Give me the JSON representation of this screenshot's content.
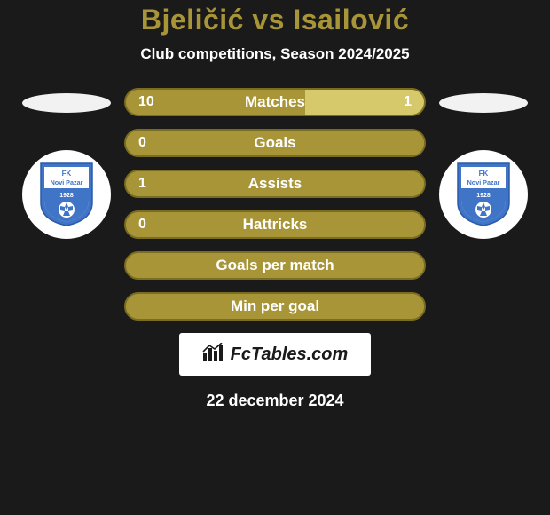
{
  "colors": {
    "background": "#1a1a1a",
    "text": "#ffffff",
    "title": "#a89538",
    "barPrimary": "#a89538",
    "barSecondary": "#d6c96b",
    "barBorder": "#7a6c20",
    "ovalLeft": "#f2f2f2",
    "ovalRight": "#f2f2f2",
    "badgeBg": "#ffffff",
    "shieldBlue": "#3f74c7",
    "shieldWhite": "#ffffff",
    "logoBg": "#ffffff",
    "logoText": "#1a1a1a"
  },
  "header": {
    "title": "Bjeličić vs Isailović",
    "subtitle": "Club competitions, Season 2024/2025"
  },
  "teams": {
    "left": {
      "name": "FK Novi Pazar",
      "founded": "1928"
    },
    "right": {
      "name": "FK Novi Pazar",
      "founded": "1928"
    }
  },
  "bars": [
    {
      "label": "Matches",
      "left": "10",
      "right": "1",
      "leftPct": 60,
      "rightPct": 40,
      "showLeft": true,
      "showRight": true,
      "rightHighlighted": true
    },
    {
      "label": "Goals",
      "left": "0",
      "right": "",
      "leftPct": 100,
      "rightPct": 0,
      "showLeft": true,
      "showRight": false,
      "rightHighlighted": false
    },
    {
      "label": "Assists",
      "left": "1",
      "right": "",
      "leftPct": 100,
      "rightPct": 0,
      "showLeft": true,
      "showRight": false,
      "rightHighlighted": false
    },
    {
      "label": "Hattricks",
      "left": "0",
      "right": "",
      "leftPct": 100,
      "rightPct": 0,
      "showLeft": true,
      "showRight": false,
      "rightHighlighted": false
    },
    {
      "label": "Goals per match",
      "left": "",
      "right": "",
      "leftPct": 100,
      "rightPct": 0,
      "showLeft": false,
      "showRight": false,
      "rightHighlighted": false
    },
    {
      "label": "Min per goal",
      "left": "",
      "right": "",
      "leftPct": 100,
      "rightPct": 0,
      "showLeft": false,
      "showRight": false,
      "rightHighlighted": false
    }
  ],
  "footer": {
    "logoText": "FcTables.com",
    "date": "22 december 2024"
  },
  "style": {
    "titleFontSize": 32,
    "subtitleFontSize": 17,
    "barHeight": 32,
    "barRadius": 16,
    "barGap": 14,
    "barLabelFontSize": 17,
    "barValFontSize": 16,
    "badgeSize": 100,
    "ovalWidth": 100,
    "ovalHeight": 22
  }
}
